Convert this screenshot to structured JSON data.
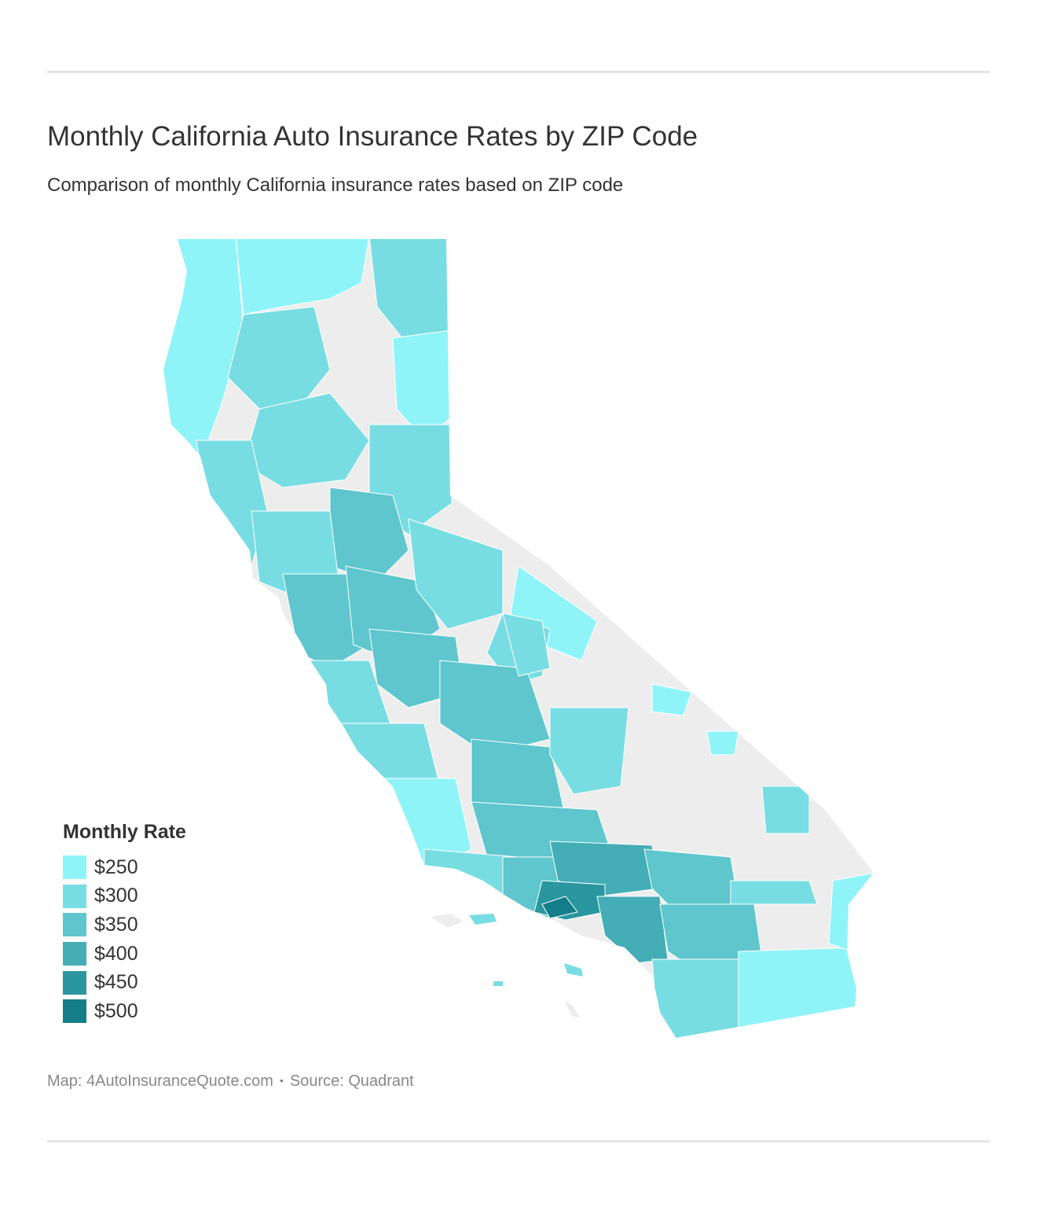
{
  "title": "Monthly California Auto Insurance Rates by ZIP Code",
  "subtitle": "Comparison of monthly California insurance rates based on ZIP code",
  "legend": {
    "title": "Monthly Rate",
    "items": [
      {
        "label": "$250",
        "color": "#8ff4f8"
      },
      {
        "label": "$300",
        "color": "#78dde2"
      },
      {
        "label": "$350",
        "color": "#5ec6cc"
      },
      {
        "label": "$400",
        "color": "#44adb5"
      },
      {
        "label": "$450",
        "color": "#2a969f"
      },
      {
        "label": "$500",
        "color": "#137d88"
      }
    ]
  },
  "footer": {
    "map_credit": "Map: 4AutoInsuranceQuote.com",
    "separator": "•",
    "source": "Source: Quadrant"
  },
  "colors": {
    "no_data": "#ededed",
    "border": "#ffffff"
  }
}
